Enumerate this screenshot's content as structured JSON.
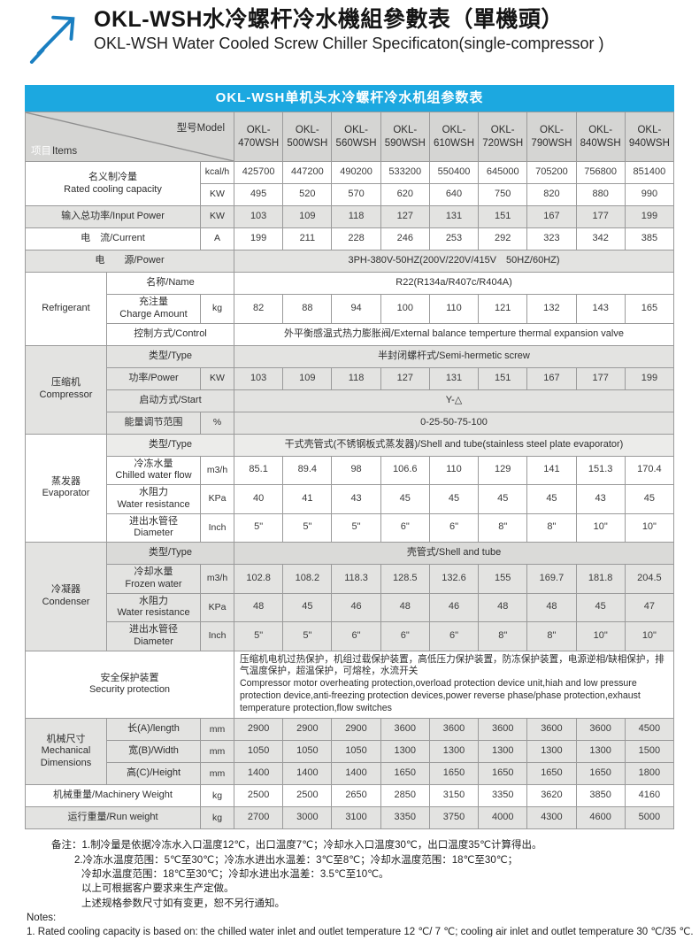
{
  "page": {
    "title_cn": "OKL-WSH水冷螺杆冷水機組參數表（單機頭）",
    "title_en": "OKL-WSH Water Cooled Screw Chiller Specificaton(single-compressor )",
    "banner_title": "OKL-WSH单机头水冷螺杆冷水机组参数表",
    "accent_blue": "#1ca8e0",
    "arrow_blue": "#1a7fc1"
  },
  "table": {
    "corner": {
      "cn": "项目",
      "en": "Items",
      "model_label": "型号Model"
    },
    "models": [
      "OKL-470WSH",
      "OKL-500WSH",
      "OKL-560WSH",
      "OKL-590WSH",
      "OKL-610WSH",
      "OKL-720WSH",
      "OKL-790WSH",
      "OKL-840WSH",
      "OKL-940WSH"
    ],
    "rows": [
      {
        "bg": "w",
        "cells": [
          {
            "t": "名义制冷量\nRated cooling capacity",
            "cs": 2,
            "rs": 2,
            "c": "lbl"
          },
          {
            "t": "kcal/h",
            "c": "unit"
          },
          {
            "t": "425700"
          },
          {
            "t": "447200"
          },
          {
            "t": "490200"
          },
          {
            "t": "533200"
          },
          {
            "t": "550400"
          },
          {
            "t": "645000"
          },
          {
            "t": "705200"
          },
          {
            "t": "756800"
          },
          {
            "t": "851400"
          }
        ]
      },
      {
        "bg": "w",
        "cells": [
          {
            "t": "KW",
            "c": "unit"
          },
          {
            "t": "495"
          },
          {
            "t": "520"
          },
          {
            "t": "570"
          },
          {
            "t": "620"
          },
          {
            "t": "640"
          },
          {
            "t": "750"
          },
          {
            "t": "820"
          },
          {
            "t": "880"
          },
          {
            "t": "990"
          }
        ]
      },
      {
        "bg": "g",
        "cells": [
          {
            "t": "输入总功率/Input Power",
            "cs": 2,
            "c": "lbl"
          },
          {
            "t": "KW",
            "c": "unit"
          },
          {
            "t": "103"
          },
          {
            "t": "109"
          },
          {
            "t": "118"
          },
          {
            "t": "127"
          },
          {
            "t": "131"
          },
          {
            "t": "151"
          },
          {
            "t": "167"
          },
          {
            "t": "177"
          },
          {
            "t": "199"
          }
        ]
      },
      {
        "bg": "w",
        "cells": [
          {
            "t": "电　流/Current",
            "cs": 2,
            "c": "lbl"
          },
          {
            "t": "A",
            "c": "unit"
          },
          {
            "t": "199"
          },
          {
            "t": "211"
          },
          {
            "t": "228"
          },
          {
            "t": "246"
          },
          {
            "t": "253"
          },
          {
            "t": "292"
          },
          {
            "t": "323"
          },
          {
            "t": "342"
          },
          {
            "t": "385"
          }
        ]
      },
      {
        "bg": "g",
        "cells": [
          {
            "t": "电　　源/Power",
            "cs": 3,
            "c": "lbl"
          },
          {
            "t": "3PH-380V-50HZ(200V/220V/415V　50HZ/60HZ)",
            "cs": 9,
            "c": "txt"
          }
        ]
      },
      {
        "bg": "w",
        "cells": [
          {
            "t": "Refrigerant",
            "rs": 3,
            "c": "grp"
          },
          {
            "t": "名称/Name",
            "cs": 2,
            "c": "lbl"
          },
          {
            "t": "R22(R134a/R407c/R404A)",
            "cs": 9,
            "c": "txt"
          }
        ]
      },
      {
        "bg": "w",
        "cells": [
          {
            "t": "充注量\nCharge Amount",
            "c": "lbl"
          },
          {
            "t": "kg",
            "c": "unit"
          },
          {
            "t": "82"
          },
          {
            "t": "88"
          },
          {
            "t": "94"
          },
          {
            "t": "100"
          },
          {
            "t": "110"
          },
          {
            "t": "121"
          },
          {
            "t": "132"
          },
          {
            "t": "143"
          },
          {
            "t": "165"
          }
        ]
      },
      {
        "bg": "w",
        "cells": [
          {
            "t": "控制方式/Control",
            "cs": 2,
            "c": "lbl"
          },
          {
            "t": "外平衡感温式热力膨胀阀/External balance temperture thermal expansion valve",
            "cs": 9,
            "c": "txt"
          }
        ]
      },
      {
        "bg": "g",
        "cells": [
          {
            "t": "压缩机\nCompressor",
            "rs": 4,
            "c": "grp"
          },
          {
            "t": "类型/Type",
            "cs": 2,
            "c": "lbl"
          },
          {
            "t": "半封闭螺杆式/Semi-hermetic screw",
            "cs": 9,
            "c": "txt"
          }
        ]
      },
      {
        "bg": "g",
        "cells": [
          {
            "t": "功率/Power",
            "c": "lbl"
          },
          {
            "t": "KW",
            "c": "unit"
          },
          {
            "t": "103"
          },
          {
            "t": "109"
          },
          {
            "t": "118"
          },
          {
            "t": "127"
          },
          {
            "t": "131"
          },
          {
            "t": "151"
          },
          {
            "t": "167"
          },
          {
            "t": "177"
          },
          {
            "t": "199"
          }
        ]
      },
      {
        "bg": "g",
        "cells": [
          {
            "t": "启动方式/Start",
            "cs": 2,
            "c": "lbl"
          },
          {
            "t": "Y-△",
            "cs": 9,
            "c": "txt"
          }
        ]
      },
      {
        "bg": "g",
        "cells": [
          {
            "t": "能量调节范围",
            "c": "lbl"
          },
          {
            "t": "%",
            "c": "unit"
          },
          {
            "t": "0-25-50-75-100",
            "cs": 9,
            "c": "txt"
          }
        ]
      },
      {
        "bg": "wg",
        "cells": [
          {
            "t": "蒸发器\nEvaporator",
            "rs": 4,
            "c": "grp cw"
          },
          {
            "t": "类型/Type",
            "cs": 2,
            "c": "lbl"
          },
          {
            "t": "干式壳管式(不锈钢板式蒸发器)/Shell and tube(stainless steel plate evaporator)",
            "cs": 9,
            "c": "txt"
          }
        ]
      },
      {
        "bg": "w",
        "cells": [
          {
            "t": "冷冻水量\nChilled water flow",
            "c": "lbl"
          },
          {
            "t": "m3/h",
            "c": "unit"
          },
          {
            "t": "85.1"
          },
          {
            "t": "89.4"
          },
          {
            "t": "98"
          },
          {
            "t": "106.6"
          },
          {
            "t": "110"
          },
          {
            "t": "129"
          },
          {
            "t": "141"
          },
          {
            "t": "151.3"
          },
          {
            "t": "170.4"
          }
        ]
      },
      {
        "bg": "w",
        "cells": [
          {
            "t": "水阻力\nWater resistance",
            "c": "lbl"
          },
          {
            "t": "KPa",
            "c": "unit"
          },
          {
            "t": "40"
          },
          {
            "t": "41"
          },
          {
            "t": "43"
          },
          {
            "t": "45"
          },
          {
            "t": "45"
          },
          {
            "t": "45"
          },
          {
            "t": "45"
          },
          {
            "t": "43"
          },
          {
            "t": "45"
          }
        ]
      },
      {
        "bg": "w",
        "cells": [
          {
            "t": "进出水管径\nDiameter",
            "c": "lbl"
          },
          {
            "t": "Inch",
            "c": "unit"
          },
          {
            "t": "5\""
          },
          {
            "t": "5\""
          },
          {
            "t": "5\""
          },
          {
            "t": "6\""
          },
          {
            "t": "6\""
          },
          {
            "t": "8\""
          },
          {
            "t": "8\""
          },
          {
            "t": "10\""
          },
          {
            "t": "10\""
          }
        ]
      },
      {
        "bg": "gd",
        "cells": [
          {
            "t": "冷凝器\nCondenser",
            "rs": 4,
            "c": "grp cg"
          },
          {
            "t": "类型/Type",
            "cs": 2,
            "c": "lbl"
          },
          {
            "t": "壳管式/Shell and tube",
            "cs": 9,
            "c": "txt"
          }
        ]
      },
      {
        "bg": "g",
        "cells": [
          {
            "t": "冷却水量\nFrozen water",
            "c": "lbl"
          },
          {
            "t": "m3/h",
            "c": "unit"
          },
          {
            "t": "102.8"
          },
          {
            "t": "108.2"
          },
          {
            "t": "118.3"
          },
          {
            "t": "128.5"
          },
          {
            "t": "132.6"
          },
          {
            "t": "155"
          },
          {
            "t": "169.7"
          },
          {
            "t": "181.8"
          },
          {
            "t": "204.5"
          }
        ]
      },
      {
        "bg": "g",
        "cells": [
          {
            "t": "水阻力\nWater resistance",
            "c": "lbl"
          },
          {
            "t": "KPa",
            "c": "unit"
          },
          {
            "t": "48"
          },
          {
            "t": "45"
          },
          {
            "t": "46"
          },
          {
            "t": "48"
          },
          {
            "t": "46"
          },
          {
            "t": "48"
          },
          {
            "t": "48"
          },
          {
            "t": "45"
          },
          {
            "t": "47"
          }
        ]
      },
      {
        "bg": "g",
        "cells": [
          {
            "t": "进出水管径\nDiameter",
            "c": "lbl"
          },
          {
            "t": "Inch",
            "c": "unit"
          },
          {
            "t": "5\""
          },
          {
            "t": "5\""
          },
          {
            "t": "6\""
          },
          {
            "t": "6\""
          },
          {
            "t": "6\""
          },
          {
            "t": "8\""
          },
          {
            "t": "8\""
          },
          {
            "t": "10\""
          },
          {
            "t": "10\""
          }
        ]
      },
      {
        "bg": "w",
        "cells": [
          {
            "t": "安全保护装置\nSecurity protection",
            "cs": 3,
            "c": "lbl"
          },
          {
            "t": "压缩机电机过热保护，机组过载保护装置，高低压力保护装置，防冻保护装置，电源逆相/缺相保护，排气温度保护，超温保护，可熔栓，水流开关\nCompressor motor overheating protection,overload protection device unit,hiah and low pressure protection device,anti-freezing protection devices,power reverse phase/phase protection,exhaust temperature protection,flow switches",
            "cs": 9,
            "c": "txtl"
          }
        ]
      },
      {
        "bg": "g",
        "cells": [
          {
            "t": "机械尺寸\nMechanical\nDimensions",
            "rs": 3,
            "c": "grp"
          },
          {
            "t": "长(A)/length",
            "c": "lbl"
          },
          {
            "t": "mm",
            "c": "unit"
          },
          {
            "t": "2900"
          },
          {
            "t": "2900"
          },
          {
            "t": "2900"
          },
          {
            "t": "3600"
          },
          {
            "t": "3600"
          },
          {
            "t": "3600"
          },
          {
            "t": "3600"
          },
          {
            "t": "3600"
          },
          {
            "t": "4500"
          }
        ]
      },
      {
        "bg": "g",
        "cells": [
          {
            "t": "宽(B)/Width",
            "c": "lbl"
          },
          {
            "t": "mm",
            "c": "unit"
          },
          {
            "t": "1050"
          },
          {
            "t": "1050"
          },
          {
            "t": "1050"
          },
          {
            "t": "1300"
          },
          {
            "t": "1300"
          },
          {
            "t": "1300"
          },
          {
            "t": "1300"
          },
          {
            "t": "1300"
          },
          {
            "t": "1500"
          }
        ]
      },
      {
        "bg": "g",
        "cells": [
          {
            "t": "高(C)/Height",
            "c": "lbl"
          },
          {
            "t": "mm",
            "c": "unit"
          },
          {
            "t": "1400"
          },
          {
            "t": "1400"
          },
          {
            "t": "1400"
          },
          {
            "t": "1650"
          },
          {
            "t": "1650"
          },
          {
            "t": "1650"
          },
          {
            "t": "1650"
          },
          {
            "t": "1650"
          },
          {
            "t": "1800"
          }
        ]
      },
      {
        "bg": "w",
        "cells": [
          {
            "t": "机械重量/Machinery Weight",
            "cs": 2,
            "c": "lbl"
          },
          {
            "t": "kg",
            "c": "unit"
          },
          {
            "t": "2500"
          },
          {
            "t": "2500"
          },
          {
            "t": "2650"
          },
          {
            "t": "2850"
          },
          {
            "t": "3150"
          },
          {
            "t": "3350"
          },
          {
            "t": "3620"
          },
          {
            "t": "3850"
          },
          {
            "t": "4160"
          }
        ]
      },
      {
        "bg": "g",
        "cells": [
          {
            "t": "运行重量/Run weight",
            "cs": 2,
            "c": "lbl"
          },
          {
            "t": "kg",
            "c": "unit"
          },
          {
            "t": "2700"
          },
          {
            "t": "3000"
          },
          {
            "t": "3100"
          },
          {
            "t": "3350"
          },
          {
            "t": "3750"
          },
          {
            "t": "4000"
          },
          {
            "t": "4300"
          },
          {
            "t": "4600"
          },
          {
            "t": "5000"
          }
        ]
      }
    ]
  },
  "notes": [
    {
      "lv": 1,
      "t": "备注：1.制冷量是依据冷冻水入口温度12℃，出口温度7℃；冷却水入口温度30℃，出口温度35℃计算得出。"
    },
    {
      "lv": 2,
      "t": "2.冷冻水温度范围：5℃至30℃；冷冻水进出水温差：3℃至8℃；冷却水温度范围：18℃至30℃；"
    },
    {
      "lv": 3,
      "t": "冷却水温度范围：18℃至30℃；冷却水进出水温差：3.5℃至10℃。"
    },
    {
      "lv": 3,
      "t": "以上可根据客户要求来生产定做。"
    },
    {
      "lv": 3,
      "t": "上述规格参数尺寸如有变更，恕不另行通知。"
    },
    {
      "lv": 0,
      "t": "Notes:"
    },
    {
      "lv": 0,
      "t": "1. Rated cooling capacity is based on: the chilled water inlet and outlet temperature 12 ℃/ 7 ℃; cooling air inlet and outlet temperature 30 ℃/35 ℃."
    }
  ]
}
